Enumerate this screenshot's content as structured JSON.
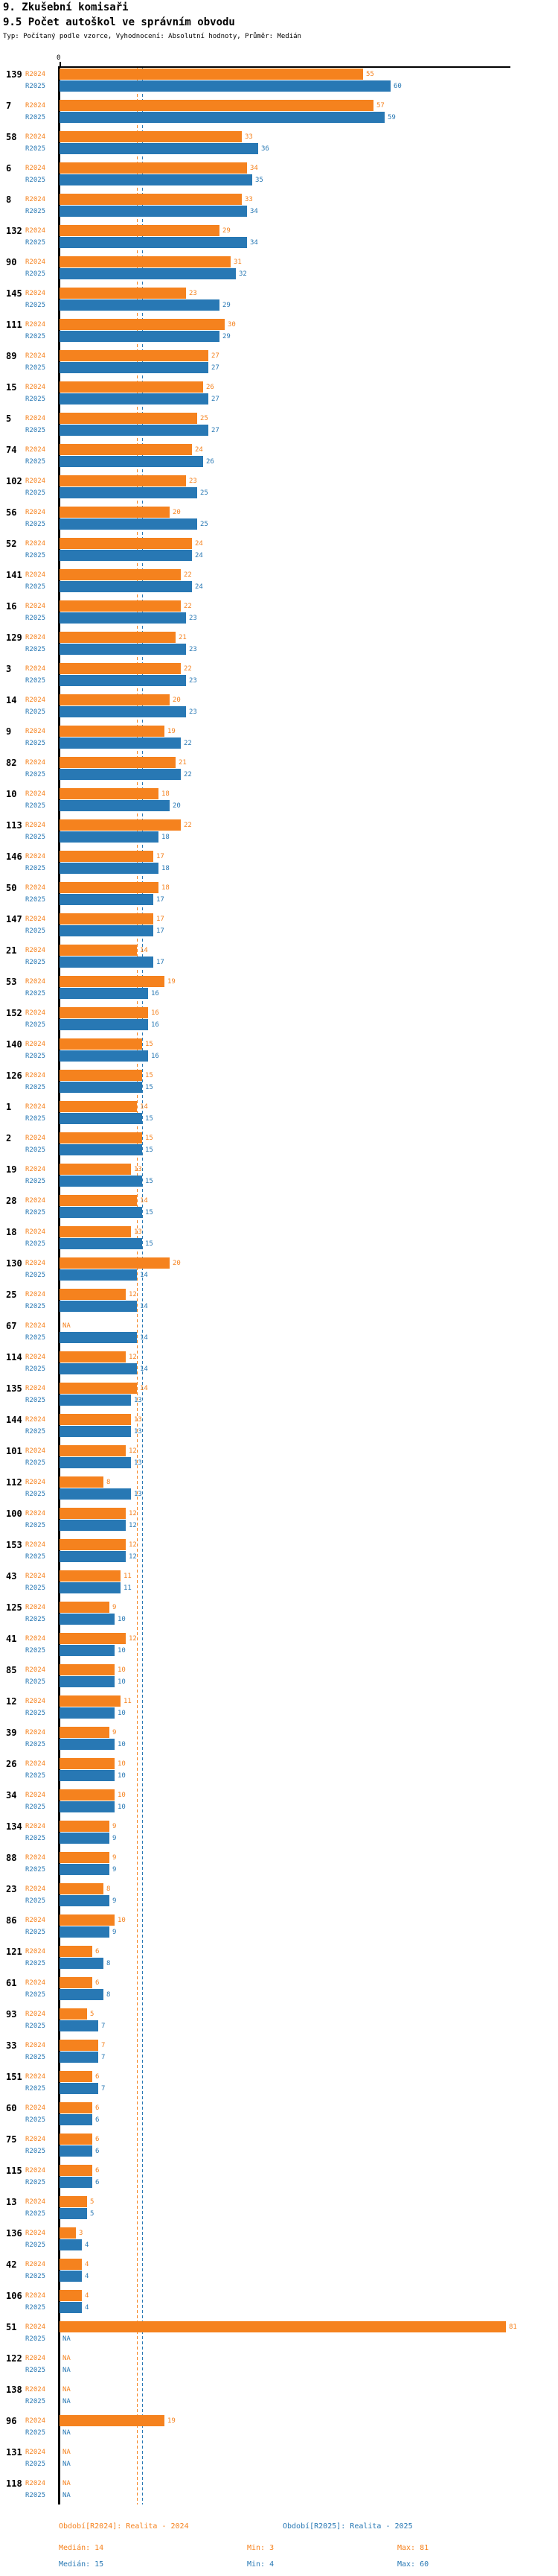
{
  "header": {
    "title_line1": "9. Zkušební komisaři",
    "title_line2": "9.5 Počet autoškol ve správním obvodu",
    "subtitle": "Typ: Počítaný podle vzorce, Vyhodnocení: Absolutní hodnoty, Průměr: Medián"
  },
  "chart_data": {
    "type": "bar",
    "orientation": "horizontal",
    "title": "9.5 Počet autoškol ve správním obvodu",
    "xlabel": "",
    "ylabel": "",
    "xlim": [
      0,
      82
    ],
    "x_tick_labels": [
      "0"
    ],
    "na_label": "NA",
    "series_names": [
      "R2024",
      "R2025"
    ],
    "series_colors": {
      "R2024": "#f5821e",
      "R2025": "#2878b4"
    },
    "reference_lines": [
      {
        "name": "Medián R2024",
        "value": 14,
        "color": "#f5821e",
        "style": "dashed"
      },
      {
        "name": "Medián R2025",
        "value": 15,
        "color": "#2878b4",
        "style": "dashed"
      }
    ],
    "rows": [
      {
        "category": "139",
        "r2024": 55,
        "r2025": 60
      },
      {
        "category": "7",
        "r2024": 57,
        "r2025": 59
      },
      {
        "category": "58",
        "r2024": 33,
        "r2025": 36
      },
      {
        "category": "6",
        "r2024": 34,
        "r2025": 35
      },
      {
        "category": "8",
        "r2024": 33,
        "r2025": 34
      },
      {
        "category": "132",
        "r2024": 29,
        "r2025": 34
      },
      {
        "category": "90",
        "r2024": 31,
        "r2025": 32
      },
      {
        "category": "145",
        "r2024": 23,
        "r2025": 29
      },
      {
        "category": "111",
        "r2024": 30,
        "r2025": 29
      },
      {
        "category": "89",
        "r2024": 27,
        "r2025": 27
      },
      {
        "category": "15",
        "r2024": 26,
        "r2025": 27
      },
      {
        "category": "5",
        "r2024": 25,
        "r2025": 27
      },
      {
        "category": "74",
        "r2024": 24,
        "r2025": 26
      },
      {
        "category": "102",
        "r2024": 23,
        "r2025": 25
      },
      {
        "category": "56",
        "r2024": 20,
        "r2025": 25
      },
      {
        "category": "52",
        "r2024": 24,
        "r2025": 24
      },
      {
        "category": "141",
        "r2024": 22,
        "r2025": 24
      },
      {
        "category": "16",
        "r2024": 22,
        "r2025": 23
      },
      {
        "category": "129",
        "r2024": 21,
        "r2025": 23
      },
      {
        "category": "3",
        "r2024": 22,
        "r2025": 23
      },
      {
        "category": "14",
        "r2024": 20,
        "r2025": 23
      },
      {
        "category": "9",
        "r2024": 19,
        "r2025": 22
      },
      {
        "category": "82",
        "r2024": 21,
        "r2025": 22
      },
      {
        "category": "10",
        "r2024": 18,
        "r2025": 20
      },
      {
        "category": "113",
        "r2024": 22,
        "r2025": 18
      },
      {
        "category": "146",
        "r2024": 17,
        "r2025": 18
      },
      {
        "category": "50",
        "r2024": 18,
        "r2025": 17
      },
      {
        "category": "147",
        "r2024": 17,
        "r2025": 17
      },
      {
        "category": "21",
        "r2024": 14,
        "r2025": 17
      },
      {
        "category": "53",
        "r2024": 19,
        "r2025": 16
      },
      {
        "category": "152",
        "r2024": 16,
        "r2025": 16
      },
      {
        "category": "140",
        "r2024": 15,
        "r2025": 16
      },
      {
        "category": "126",
        "r2024": 15,
        "r2025": 15
      },
      {
        "category": "1",
        "r2024": 14,
        "r2025": 15
      },
      {
        "category": "2",
        "r2024": 15,
        "r2025": 15
      },
      {
        "category": "19",
        "r2024": 13,
        "r2025": 15
      },
      {
        "category": "28",
        "r2024": 14,
        "r2025": 15
      },
      {
        "category": "18",
        "r2024": 13,
        "r2025": 15
      },
      {
        "category": "130",
        "r2024": 20,
        "r2025": 14
      },
      {
        "category": "25",
        "r2024": 12,
        "r2025": 14
      },
      {
        "category": "67",
        "r2024": null,
        "r2025": 14
      },
      {
        "category": "114",
        "r2024": 12,
        "r2025": 14
      },
      {
        "category": "135",
        "r2024": 14,
        "r2025": 13
      },
      {
        "category": "144",
        "r2024": 13,
        "r2025": 13
      },
      {
        "category": "101",
        "r2024": 12,
        "r2025": 13
      },
      {
        "category": "112",
        "r2024": 8,
        "r2025": 13
      },
      {
        "category": "100",
        "r2024": 12,
        "r2025": 12
      },
      {
        "category": "153",
        "r2024": 12,
        "r2025": 12
      },
      {
        "category": "43",
        "r2024": 11,
        "r2025": 11
      },
      {
        "category": "125",
        "r2024": 9,
        "r2025": 10
      },
      {
        "category": "41",
        "r2024": 12,
        "r2025": 10
      },
      {
        "category": "85",
        "r2024": 10,
        "r2025": 10
      },
      {
        "category": "12",
        "r2024": 11,
        "r2025": 10
      },
      {
        "category": "39",
        "r2024": 9,
        "r2025": 10
      },
      {
        "category": "26",
        "r2024": 10,
        "r2025": 10
      },
      {
        "category": "34",
        "r2024": 10,
        "r2025": 10
      },
      {
        "category": "134",
        "r2024": 9,
        "r2025": 9
      },
      {
        "category": "88",
        "r2024": 9,
        "r2025": 9
      },
      {
        "category": "23",
        "r2024": 8,
        "r2025": 9
      },
      {
        "category": "86",
        "r2024": 10,
        "r2025": 9
      },
      {
        "category": "121",
        "r2024": 6,
        "r2025": 8
      },
      {
        "category": "61",
        "r2024": 6,
        "r2025": 8
      },
      {
        "category": "93",
        "r2024": 5,
        "r2025": 7
      },
      {
        "category": "33",
        "r2024": 7,
        "r2025": 7
      },
      {
        "category": "151",
        "r2024": 6,
        "r2025": 7
      },
      {
        "category": "60",
        "r2024": 6,
        "r2025": 6
      },
      {
        "category": "75",
        "r2024": 6,
        "r2025": 6
      },
      {
        "category": "115",
        "r2024": 6,
        "r2025": 6
      },
      {
        "category": "13",
        "r2024": 5,
        "r2025": 5
      },
      {
        "category": "136",
        "r2024": 3,
        "r2025": 4
      },
      {
        "category": "42",
        "r2024": 4,
        "r2025": 4
      },
      {
        "category": "106",
        "r2024": 4,
        "r2025": 4
      },
      {
        "category": "51",
        "r2024": 81,
        "r2025": null
      },
      {
        "category": "122",
        "r2024": null,
        "r2025": null
      },
      {
        "category": "138",
        "r2024": null,
        "r2025": null
      },
      {
        "category": "96",
        "r2024": 19,
        "r2025": null
      },
      {
        "category": "131",
        "r2024": null,
        "r2025": null
      },
      {
        "category": "118",
        "r2024": null,
        "r2025": null
      }
    ]
  },
  "legend": {
    "r2024_period": "Období[R2024]: Realita - 2024",
    "r2025_period": "Období[R2025]: Realita - 2025",
    "r2024_median": "Medián: 14",
    "r2024_min": "Min: 3",
    "r2024_max": "Max: 81",
    "r2025_median": "Medián: 15",
    "r2025_min": "Min: 4",
    "r2025_max": "Max: 60"
  }
}
